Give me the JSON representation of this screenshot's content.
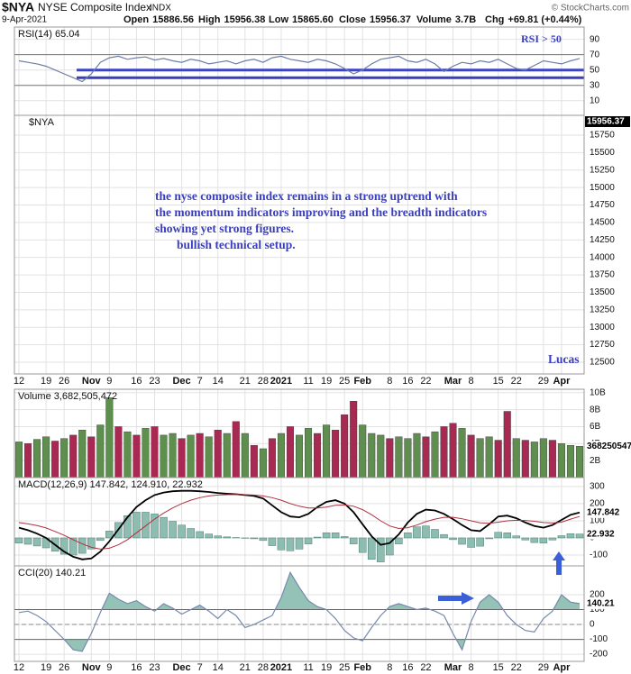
{
  "header": {
    "symbol": "$NYA",
    "name": "NYSE Composite Index",
    "exchange": "INDX",
    "source": "© StockCharts.com",
    "date": "9-Apr-2021",
    "quote": [
      {
        "label": "Open",
        "value": "15886.56"
      },
      {
        "label": "High",
        "value": "15956.38"
      },
      {
        "label": "Low",
        "value": "15865.60"
      },
      {
        "label": "Close",
        "value": "15956.37"
      },
      {
        "label": "Volume",
        "value": "3.7B"
      },
      {
        "label": "Chg",
        "value": "+69.81 (+0.44%)"
      }
    ]
  },
  "chart_data": [
    {
      "type": "price",
      "label": "$NYA",
      "categories": [
        "12",
        null,
        null,
        "19",
        null,
        "26",
        null,
        null,
        "Nov",
        null,
        "9",
        null,
        null,
        "16",
        null,
        "23",
        null,
        null,
        "Dec",
        null,
        "7",
        null,
        "14",
        null,
        null,
        "21",
        null,
        "28",
        null,
        "2021",
        null,
        null,
        "11",
        null,
        "19",
        null,
        "25",
        null,
        "Feb",
        null,
        null,
        "8",
        null,
        "16",
        null,
        "22",
        null,
        null,
        "Mar",
        null,
        "8",
        null,
        null,
        "15",
        null,
        "22",
        null,
        null,
        "29",
        null,
        "Apr",
        null,
        null
      ],
      "ylim": [
        12332,
        16034
      ],
      "yticks": [
        15750,
        15500,
        15250,
        15000,
        14750,
        14500,
        14250,
        14000,
        13750,
        13500,
        13250,
        13000,
        12750,
        12500
      ],
      "note": [
        "the nyse composite index remains in a strong uptrend with",
        "the momentum indicators improving and the breadth indicators",
        "showing yet strong figures.",
        "bullish technical setup."
      ],
      "signature": "Lucas",
      "note_color": "#3a3fbf"
    },
    {
      "type": "line",
      "label": "RSI(14) 65.04",
      "annotation": "RSI > 50",
      "ylim": [
        -9,
        106
      ],
      "yticks": [
        10,
        30,
        50,
        70,
        90
      ],
      "ref_lines": [
        30,
        70
      ],
      "drawn_lines": [
        {
          "value": 50,
          "color": "#3c44c4"
        },
        {
          "value": 40,
          "color": "#3a3fb8"
        }
      ],
      "color": "#6b7fa6",
      "values": [
        62,
        60,
        58,
        55,
        50,
        45,
        40,
        35,
        45,
        60,
        66,
        68,
        64,
        66,
        67,
        63,
        65,
        62,
        60,
        64,
        62,
        58,
        60,
        62,
        58,
        62,
        64,
        60,
        66,
        68,
        64,
        62,
        60,
        64,
        62,
        58,
        52,
        45,
        50,
        58,
        64,
        66,
        68,
        62,
        60,
        64,
        58,
        48,
        55,
        60,
        58,
        62,
        60,
        64,
        58,
        52,
        50,
        56,
        62,
        60,
        58,
        62,
        65.04
      ]
    },
    {
      "type": "bar",
      "label": "Volume 3,682,505,472",
      "ylim": [
        0,
        10400000000.0
      ],
      "yticks": [
        {
          "value": 2000000000.0,
          "label": "2B"
        },
        {
          "value": 4000000000.0,
          "label": "4B"
        },
        {
          "value": 6000000000.0,
          "label": "6B"
        },
        {
          "value": 8000000000.0,
          "label": "8B"
        },
        {
          "value": 10000000000.0,
          "label": "10B"
        }
      ],
      "palette": {
        "g": "#5f8f4e",
        "r": "#a82a52"
      },
      "bar_colors": [
        "g",
        "r",
        "g",
        "g",
        "r",
        "g",
        "r",
        "g",
        "r",
        "g",
        "g",
        "r",
        "g",
        "r",
        "g",
        "r",
        "g",
        "g",
        "r",
        "g",
        "r",
        "g",
        "r",
        "g",
        "r",
        "g",
        "r",
        "g",
        "r",
        "g",
        "r",
        "g",
        "g",
        "r",
        "g",
        "r",
        "r",
        "r",
        "g",
        "g",
        "g",
        "r",
        "g",
        "g",
        "g",
        "r",
        "g",
        "r",
        "r",
        "g",
        "r",
        "g",
        "g",
        "r",
        "r",
        "g",
        "r",
        "g",
        "g",
        "r",
        "g",
        "g",
        "g"
      ],
      "values": [
        4200000000.0,
        4000000000.0,
        4500000000.0,
        4800000000.0,
        4300000000.0,
        4600000000.0,
        5000000000.0,
        5600000000.0,
        4800000000.0,
        6200000000.0,
        9400000000.0,
        6000000000.0,
        5400000000.0,
        5000000000.0,
        5800000000.0,
        6000000000.0,
        5000000000.0,
        5200000000.0,
        4600000000.0,
        5000000000.0,
        5200000000.0,
        4800000000.0,
        5600000000.0,
        5200000000.0,
        6600000000.0,
        5200000000.0,
        3800000000.0,
        3400000000.0,
        4600000000.0,
        5200000000.0,
        6000000000.0,
        5000000000.0,
        5800000000.0,
        5200000000.0,
        6200000000.0,
        5600000000.0,
        7400000000.0,
        9000000000.0,
        6200000000.0,
        5200000000.0,
        5000000000.0,
        4600000000.0,
        4800000000.0,
        4600000000.0,
        5200000000.0,
        4800000000.0,
        5400000000.0,
        6000000000.0,
        6400000000.0,
        5800000000.0,
        5000000000.0,
        4600000000.0,
        4800000000.0,
        4400000000.0,
        7800000000.0,
        4600000000.0,
        4400000000.0,
        4200000000.0,
        4600000000.0,
        4400000000.0,
        4000000000.0,
        3800000000.0,
        3682505472
      ]
    },
    {
      "type": "macd",
      "label": "MACD(12,26,9) 147.842, 124.910, 22.932",
      "ylim": [
        -163,
        352
      ],
      "yticks": [
        -100,
        0,
        100,
        200,
        300
      ],
      "series": [
        {
          "kind": "line",
          "color": "#000000",
          "values": [
            60,
            45,
            25,
            0,
            -40,
            -80,
            -110,
            -125,
            -120,
            -80,
            -20,
            50,
            120,
            180,
            220,
            250,
            265,
            272,
            275,
            275,
            272,
            268,
            262,
            258,
            255,
            250,
            245,
            230,
            190,
            150,
            125,
            120,
            140,
            180,
            210,
            220,
            200,
            150,
            80,
            10,
            -40,
            -30,
            20,
            90,
            140,
            165,
            160,
            140,
            110,
            75,
            45,
            40,
            80,
            125,
            130,
            115,
            90,
            70,
            60,
            75,
            105,
            135,
            147.842
          ]
        },
        {
          "kind": "line",
          "color": "#b0303f",
          "values": [
            90,
            82,
            72,
            58,
            38,
            15,
            -10,
            -35,
            -55,
            -65,
            -60,
            -40,
            -10,
            30,
            70,
            110,
            145,
            175,
            200,
            220,
            235,
            245,
            250,
            252,
            253,
            252,
            250,
            245,
            235,
            220,
            200,
            185,
            175,
            175,
            180,
            190,
            192,
            185,
            165,
            135,
            100,
            70,
            55,
            60,
            75,
            95,
            110,
            120,
            120,
            112,
            100,
            88,
            85,
            92,
            100,
            103,
            102,
            97,
            90,
            87,
            92,
            110,
            124.91
          ]
        },
        {
          "kind": "bar",
          "color": "#8dbdb1",
          "values": [
            -30,
            -37,
            -47,
            -58,
            -78,
            -95,
            -100,
            -90,
            -65,
            -15,
            40,
            90,
            130,
            150,
            150,
            140,
            120,
            97,
            75,
            55,
            37,
            23,
            12,
            6,
            2,
            -2,
            -5,
            -15,
            -45,
            -70,
            -75,
            -65,
            -35,
            5,
            30,
            30,
            8,
            -35,
            -85,
            -125,
            -140,
            -100,
            -35,
            30,
            65,
            70,
            50,
            20,
            -10,
            -37,
            -55,
            -48,
            -5,
            33,
            30,
            12,
            -12,
            -27,
            -30,
            -12,
            13,
            25,
            22.932
          ]
        }
      ]
    },
    {
      "type": "cci",
      "label": "CCI(20) 140.21",
      "ylim": [
        -248,
        394
      ],
      "yticks": [
        -200,
        -100,
        0,
        100,
        200
      ],
      "bands": [
        100,
        -100
      ],
      "color": "#7689ad",
      "fill_color": "#95c2b6",
      "values": [
        80,
        90,
        60,
        20,
        -40,
        -100,
        -170,
        -180,
        -60,
        80,
        210,
        170,
        140,
        160,
        120,
        90,
        140,
        110,
        70,
        100,
        130,
        90,
        40,
        100,
        60,
        -20,
        0,
        30,
        60,
        180,
        350,
        250,
        160,
        120,
        100,
        40,
        -40,
        -90,
        -110,
        -20,
        60,
        120,
        140,
        120,
        100,
        110,
        90,
        60,
        -60,
        -170,
        20,
        150,
        200,
        150,
        60,
        0,
        -40,
        -50,
        40,
        90,
        200,
        150,
        140.21
      ]
    }
  ]
}
